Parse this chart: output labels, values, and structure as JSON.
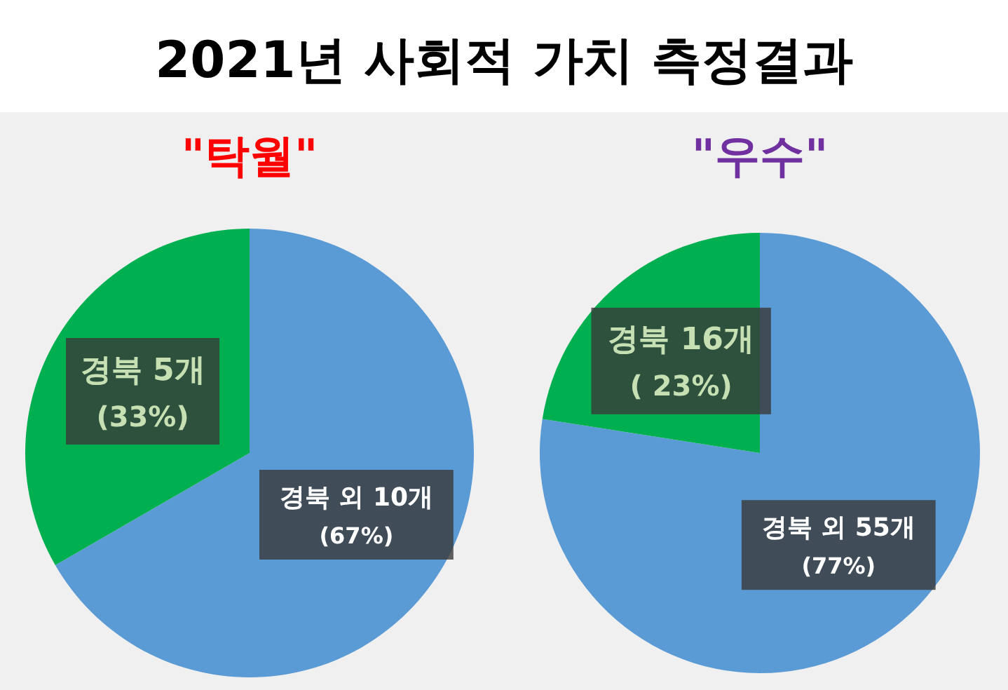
{
  "chart_data": [
    {
      "type": "pie",
      "title": "2021년 사회적 가치 측정결과",
      "subtitle": "\"탁월\"",
      "categories": [
        "경북 외",
        "경북"
      ],
      "values": [
        10,
        5
      ],
      "colors": [
        "#5b9bd5",
        "#00b050"
      ],
      "value_labels": [
        "10개\n(67%)",
        "5개\n(33%)"
      ]
    },
    {
      "type": "pie",
      "subtitle": "\"우수\"",
      "categories": [
        "경북 외",
        "경북"
      ],
      "values": [
        55,
        16
      ],
      "colors": [
        "#5b9bd5",
        "#00b050"
      ],
      "value_labels": [
        "55개\n(77%)",
        "16개\n( 23%)"
      ]
    }
  ]
}
